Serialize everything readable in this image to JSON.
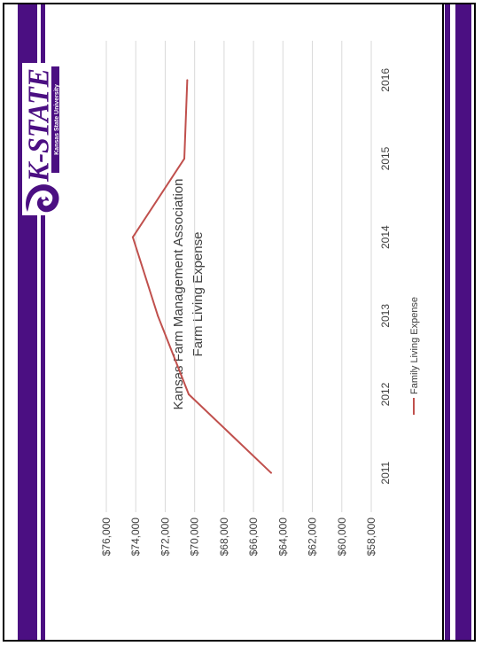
{
  "logo": {
    "wordmark": "K-STATE",
    "subtitle": "Kansas State University"
  },
  "colors": {
    "purple": "#4b0f82",
    "line": "#c0504d",
    "grid": "#d9d9d9",
    "text": "#404040"
  },
  "chart_data": {
    "type": "line",
    "title": "Kansas Farm Management Association",
    "subtitle": "Farm Living Expense",
    "categories": [
      "2011",
      "2012",
      "2013",
      "2014",
      "2015",
      "2016"
    ],
    "series": [
      {
        "name": "Family Living Expense",
        "values": [
          64800,
          70400,
          72500,
          74200,
          70700,
          70500
        ]
      }
    ],
    "ylim": [
      58000,
      76000
    ],
    "yticks": [
      "$58,000",
      "$60,000",
      "$62,000",
      "$64,000",
      "$66,000",
      "$68,000",
      "$70,000",
      "$72,000",
      "$74,000",
      "$76,000"
    ],
    "ytick_values": [
      58000,
      60000,
      62000,
      64000,
      66000,
      68000,
      70000,
      72000,
      74000,
      76000
    ],
    "grid": true,
    "legend": "bottom"
  }
}
